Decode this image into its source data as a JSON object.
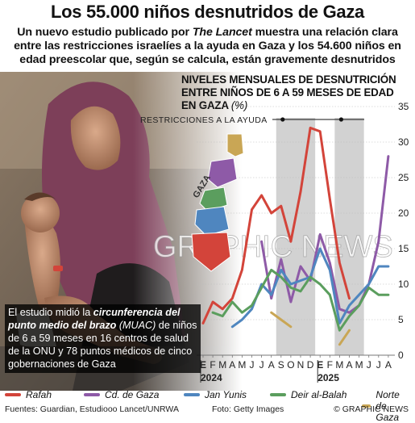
{
  "header": {
    "title": "Los 55.000 niños desnutridos de Gaza",
    "subtitle_1": "Un nuevo estudio publicado por ",
    "subtitle_journal": "The Lancet",
    "subtitle_2": " muestra una relación clara entre las restricciones israelíes a la ayuda en Gaza y los 54.600 niños en edad preescolar que, según se calcula, están gravemente desnutridos"
  },
  "chart_title": {
    "text": "NIVELES MENSUALES DE DESNUTRICIÓN ENTRE NIÑOS DE 6 A 59 MESES DE EDAD EN GAZA ",
    "unit": "(%)"
  },
  "caption": {
    "part1": "El estudio midió la ",
    "emphasis": "circunferencia del punto medio del brazo",
    "part2": " ",
    "abbr": "(MUAC)",
    "part3": " de niños de 6 a 59 meses en 16 centros de salud de la ONU y 78 puntos médicos de cinco gobernaciones de Gaza"
  },
  "map": {
    "label": "GAZA"
  },
  "watermark": "GRAPHIC NEWS",
  "colors": {
    "Rafah": "#d3443a",
    "Cd. de Gaza": "#8e5aa7",
    "Jan Yunis": "#4f86bf",
    "Deir al-Balah": "#5b9e5e",
    "Norte de Gaza": "#c9a655",
    "restriction_band": "#d2d2d2"
  },
  "chart_data": {
    "type": "line",
    "ylim": [
      0,
      35
    ],
    "yticks": [
      0,
      5,
      10,
      15,
      20,
      25,
      30,
      35
    ],
    "months": [
      "E",
      "F",
      "M",
      "A",
      "M",
      "J",
      "J",
      "A",
      "S",
      "O",
      "N",
      "D",
      "E",
      "F",
      "M",
      "A",
      "M",
      "J",
      "J",
      "A"
    ],
    "years": [
      {
        "label": "2024",
        "index": 0
      },
      {
        "label": "2025",
        "index": 12
      }
    ],
    "annotation": "RESTRICCIONES A LA AYUDA",
    "restriction_periods": [
      [
        8,
        11
      ],
      [
        14,
        16
      ]
    ],
    "series": [
      {
        "name": "Rafah",
        "values": [
          4.5,
          7.5,
          6.5,
          8,
          12,
          20.5,
          22.5,
          20,
          21,
          16,
          23,
          32,
          31.5,
          22,
          13,
          8,
          null,
          null,
          null,
          null
        ]
      },
      {
        "name": "Cd. de Gaza",
        "values": [
          null,
          null,
          null,
          null,
          null,
          null,
          16,
          8,
          13.5,
          7.5,
          12.5,
          10.5,
          17,
          13,
          6.5,
          6,
          7,
          10,
          16,
          28
        ]
      },
      {
        "name": "Jan Yunis",
        "values": [
          null,
          null,
          null,
          4,
          5,
          6.5,
          10,
          8.5,
          12,
          10,
          10.5,
          11,
          15,
          12,
          4.5,
          7,
          8.5,
          10,
          12.5,
          12.5
        ]
      },
      {
        "name": "Deir al-Balah",
        "values": [
          null,
          6,
          5.5,
          7.5,
          6,
          7,
          9.5,
          12,
          11,
          9.5,
          9,
          11,
          10,
          8.5,
          3.5,
          5.5,
          7,
          9.5,
          8.5,
          8.5
        ]
      },
      {
        "name": "Norte de Gaza",
        "values": [
          null,
          null,
          null,
          null,
          null,
          null,
          null,
          6,
          5,
          4,
          null,
          null,
          null,
          null,
          1.5,
          3.5,
          null,
          null,
          null,
          null
        ]
      }
    ]
  },
  "footer": {
    "sources": "Fuentes: Guardian, Estudiooo Lancet/UNRWA",
    "photo_credit": "Foto: Getty Images",
    "brand": "© GRAPHIC NEWS"
  }
}
